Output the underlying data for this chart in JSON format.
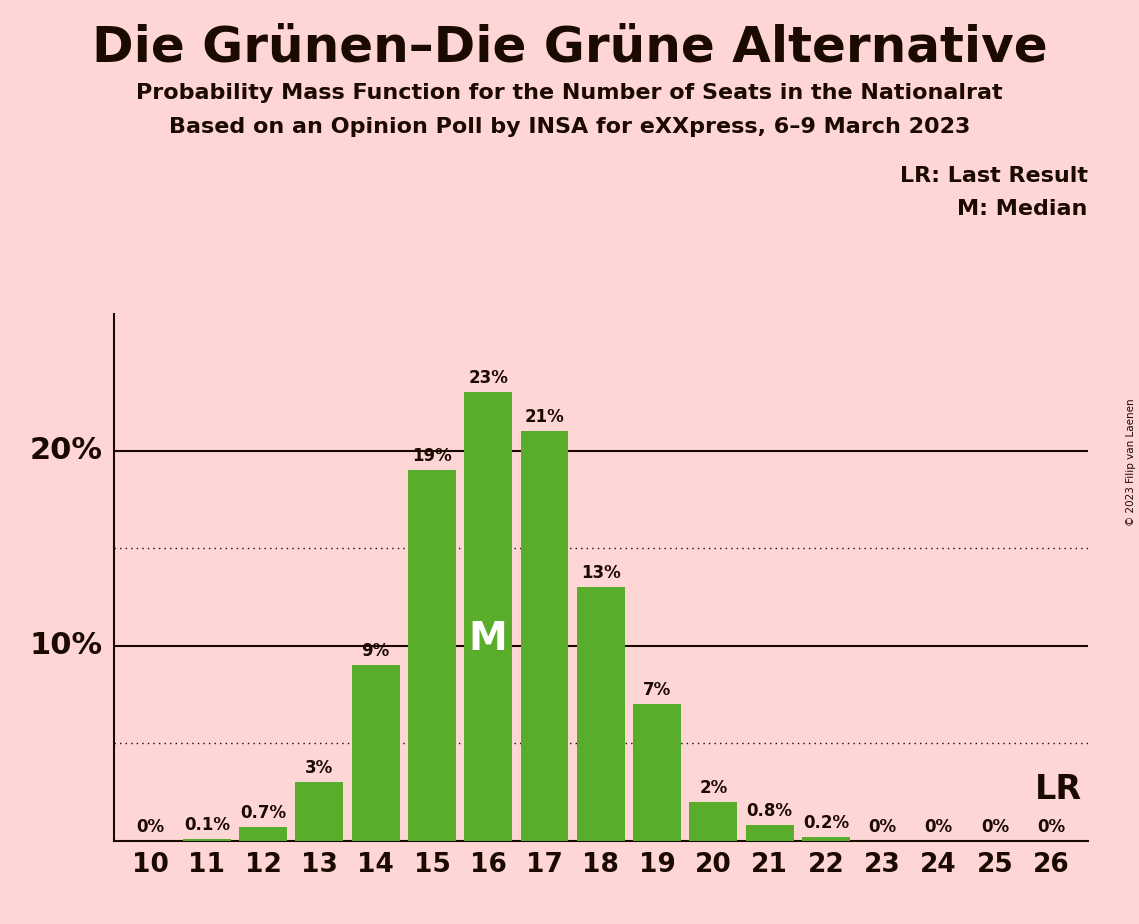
{
  "title": "Die Grünen–Die Grüne Alternative",
  "subtitle1": "Probability Mass Function for the Number of Seats in the Nationalrat",
  "subtitle2": "Based on an Opinion Poll by INSA for eXXpress, 6–9 March 2023",
  "copyright": "© 2023 Filip van Laenen",
  "seats": [
    10,
    11,
    12,
    13,
    14,
    15,
    16,
    17,
    18,
    19,
    20,
    21,
    22,
    23,
    24,
    25,
    26
  ],
  "probabilities": [
    0.0,
    0.1,
    0.7,
    3.0,
    9.0,
    19.0,
    23.0,
    21.0,
    13.0,
    7.0,
    2.0,
    0.8,
    0.2,
    0.0,
    0.0,
    0.0,
    0.0
  ],
  "labels": [
    "0%",
    "0.1%",
    "0.7%",
    "3%",
    "9%",
    "19%",
    "23%",
    "21%",
    "13%",
    "7%",
    "2%",
    "0.8%",
    "0.2%",
    "0%",
    "0%",
    "0%",
    "0%"
  ],
  "bar_color": "#5aad2a",
  "background_color": "#ffd6d6",
  "text_color": "#1a0a00",
  "median_seat": 16,
  "last_result_seat": 26,
  "solid_yticks": [
    10,
    20
  ],
  "dotted_yticks": [
    5,
    15
  ],
  "ylim": [
    0,
    27
  ],
  "lr_label": "LR: Last Result",
  "m_label": "M: Median"
}
